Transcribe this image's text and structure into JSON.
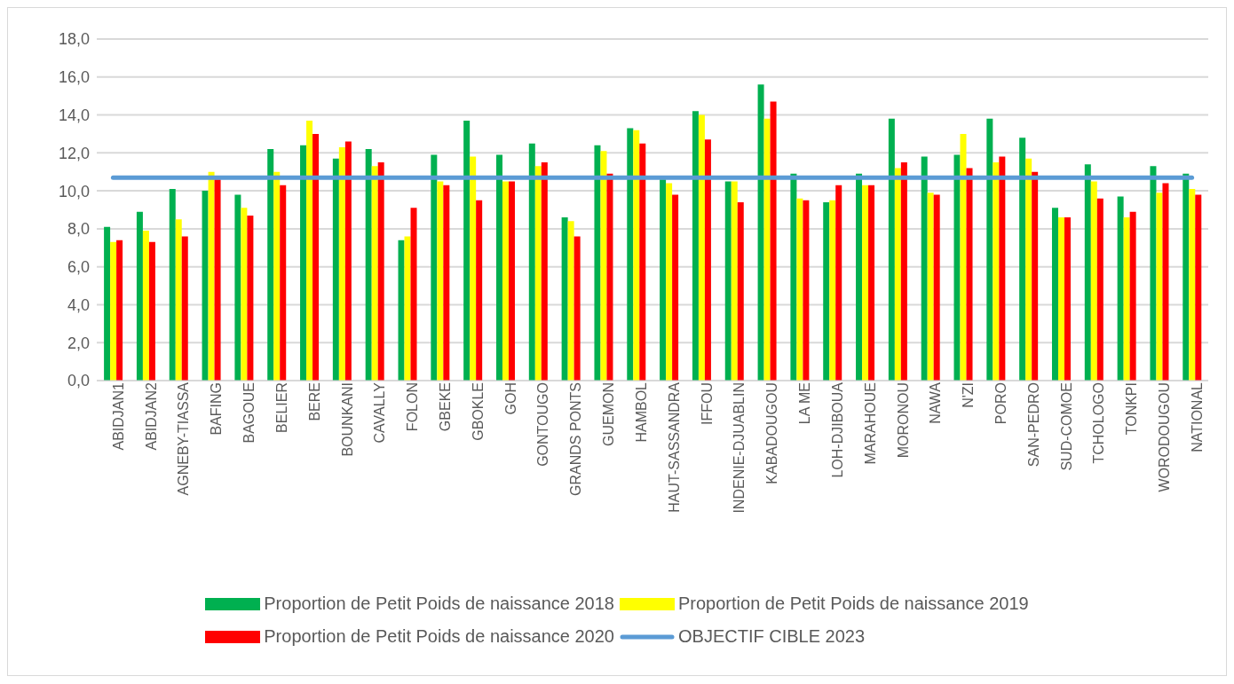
{
  "chart_data": {
    "type": "bar",
    "categories": [
      "ABIDJAN1",
      "ABIDJAN2",
      "AGNEBY-TIASSA",
      "BAFING",
      "BAGOUE",
      "BELIER",
      "BERE",
      "BOUNKANI",
      "CAVALLY",
      "FOLON",
      "GBEKE",
      "GBOKLE",
      "GOH",
      "GONTOUGO",
      "GRANDS PONTS",
      "GUEMON",
      "HAMBOL",
      "HAUT-SASSANDRA",
      "IFFOU",
      "INDENIE-DJUABLIN",
      "KABADOUGOU",
      "LA ME",
      "LOH-DJIBOUA",
      "MARAHOUE",
      "MORONOU",
      "NAWA",
      "N'ZI",
      "PORO",
      "SAN-PEDRO",
      "SUD-COMOE",
      "TCHOLOGO",
      "TONKPI",
      "WORODOUGOU",
      "NATIONAL"
    ],
    "series": [
      {
        "name": "Proportion de Petit Poids de naissance 2018",
        "color": "#00b050",
        "values": [
          8.1,
          8.9,
          10.1,
          10.0,
          9.8,
          12.2,
          12.4,
          11.7,
          12.2,
          7.4,
          11.9,
          13.7,
          11.9,
          12.5,
          8.6,
          12.4,
          13.3,
          10.6,
          14.2,
          10.5,
          15.6,
          10.9,
          9.4,
          10.9,
          13.8,
          11.8,
          11.9,
          13.8,
          12.8,
          9.1,
          11.4,
          9.7,
          11.3,
          10.9
        ]
      },
      {
        "name": "Proportion de Petit Poids de naissance 2019",
        "color": "#ffff00",
        "values": [
          7.3,
          7.9,
          8.5,
          11.0,
          9.1,
          11.0,
          13.7,
          12.3,
          11.3,
          7.6,
          10.5,
          11.8,
          10.5,
          11.3,
          8.4,
          12.1,
          13.2,
          10.4,
          14.0,
          10.5,
          13.8,
          9.6,
          9.5,
          10.3,
          11.2,
          9.9,
          13.0,
          11.5,
          11.7,
          8.6,
          10.5,
          8.6,
          9.9,
          10.1
        ]
      },
      {
        "name": "Proportion de Petit Poids de naissance 2020",
        "color": "#ff0000",
        "values": [
          7.4,
          7.3,
          7.6,
          10.6,
          8.7,
          10.3,
          13.0,
          12.6,
          11.5,
          9.1,
          10.3,
          9.5,
          10.5,
          11.5,
          7.6,
          10.9,
          12.5,
          9.8,
          12.7,
          9.4,
          14.7,
          9.5,
          10.3,
          10.3,
          11.5,
          9.8,
          11.2,
          11.8,
          11.0,
          8.6,
          9.6,
          8.9,
          10.4,
          9.8
        ]
      },
      {
        "name": "OBJECTIF CIBLE 2023",
        "type": "line",
        "color": "#5b9bd5",
        "values": [
          10.7,
          10.7,
          10.7,
          10.7,
          10.7,
          10.7,
          10.7,
          10.7,
          10.7,
          10.7,
          10.7,
          10.7,
          10.7,
          10.7,
          10.7,
          10.7,
          10.7,
          10.7,
          10.7,
          10.7,
          10.7,
          10.7,
          10.7,
          10.7,
          10.7,
          10.7,
          10.7,
          10.7,
          10.7,
          10.7,
          10.7,
          10.7,
          10.7,
          10.7
        ]
      }
    ],
    "ylim": [
      0,
      18
    ],
    "yticks": [
      {
        "value": 0,
        "label": "0,0"
      },
      {
        "value": 2,
        "label": "2,0"
      },
      {
        "value": 4,
        "label": "4,0"
      },
      {
        "value": 6,
        "label": "6,0"
      },
      {
        "value": 8,
        "label": "8,0"
      },
      {
        "value": 10,
        "label": "10,0"
      },
      {
        "value": 12,
        "label": "12,0"
      },
      {
        "value": 14,
        "label": "14,0"
      },
      {
        "value": 16,
        "label": "16,0"
      },
      {
        "value": 18,
        "label": "18,0"
      }
    ],
    "grid": "y",
    "legend": "bottom",
    "marker": "none"
  }
}
